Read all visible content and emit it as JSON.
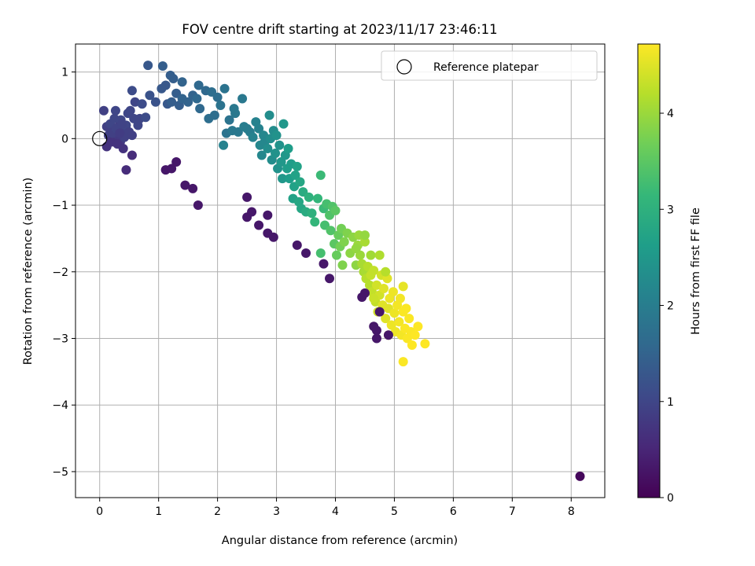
{
  "chart_data": {
    "type": "scatter",
    "title": "FOV centre drift starting at 2023/11/17 23:46:11",
    "xlabel": "Angular distance from reference (arcmin)",
    "ylabel": "Rotation from reference (arcmin)",
    "xlim": [
      -0.41,
      8.57
    ],
    "ylim": [
      -5.39,
      1.42
    ],
    "xticks": [
      0,
      1,
      2,
      3,
      4,
      5,
      6,
      7,
      8
    ],
    "yticks": [
      1,
      0,
      -1,
      -2,
      -3,
      -4,
      -5
    ],
    "grid": true,
    "legend": {
      "position": "top-right",
      "entries": [
        "Reference platepar"
      ]
    },
    "reference_point": {
      "x": 0,
      "y": 0
    },
    "colorbar": {
      "label": "Hours from first FF file",
      "colormap": "viridis",
      "range": [
        0,
        4.72
      ],
      "ticks": [
        0,
        1,
        2,
        3,
        4
      ]
    },
    "colormap_stops": [
      "#440154",
      "#482878",
      "#3e4989",
      "#31688e",
      "#26828e",
      "#1f9e89",
      "#35b779",
      "#6ece58",
      "#b5de2b",
      "#fde725"
    ],
    "points": [
      [
        0.07,
        0.42,
        0.9
      ],
      [
        0.12,
        0.18,
        0.9
      ],
      [
        0.15,
        0.05,
        0.9
      ],
      [
        0.18,
        0.22,
        1.0
      ],
      [
        0.2,
        -0.02,
        0.8
      ],
      [
        0.22,
        0.1,
        0.9
      ],
      [
        0.25,
        0.3,
        1.0
      ],
      [
        0.27,
        0.42,
        1.0
      ],
      [
        0.3,
        0.02,
        0.8
      ],
      [
        0.32,
        0.18,
        0.9
      ],
      [
        0.35,
        -0.05,
        0.8
      ],
      [
        0.36,
        0.28,
        1.0
      ],
      [
        0.4,
        0.12,
        0.9
      ],
      [
        0.42,
        0.02,
        0.9
      ],
      [
        0.45,
        0.2,
        1.0
      ],
      [
        0.48,
        0.38,
        1.0
      ],
      [
        0.5,
        0.1,
        0.9
      ],
      [
        0.52,
        0.42,
        1.0
      ],
      [
        0.55,
        0.05,
        0.9
      ],
      [
        0.58,
        0.3,
        1.0
      ],
      [
        0.6,
        0.55,
        1.0
      ],
      [
        0.65,
        0.2,
        1.0
      ],
      [
        0.68,
        0.3,
        1.0
      ],
      [
        0.72,
        0.52,
        1.1
      ],
      [
        0.78,
        0.32,
        1.1
      ],
      [
        0.12,
        -0.12,
        0.7
      ],
      [
        0.2,
        -0.05,
        0.7
      ],
      [
        0.3,
        -0.08,
        0.7
      ],
      [
        0.4,
        -0.15,
        0.7
      ],
      [
        0.45,
        -0.47,
        0.6
      ],
      [
        0.55,
        -0.25,
        0.6
      ],
      [
        0.22,
        0.08,
        0.9
      ],
      [
        0.28,
        0.15,
        0.95
      ],
      [
        0.34,
        0.08,
        0.85
      ],
      [
        0.38,
        0.22,
        0.95
      ],
      [
        0.55,
        0.72,
        1.1
      ],
      [
        0.82,
        1.1,
        1.3
      ],
      [
        1.07,
        1.09,
        1.4
      ],
      [
        0.85,
        0.65,
        1.2
      ],
      [
        0.95,
        0.55,
        1.2
      ],
      [
        1.05,
        0.75,
        1.3
      ],
      [
        1.12,
        0.8,
        1.3
      ],
      [
        1.2,
        0.95,
        1.4
      ],
      [
        1.25,
        0.9,
        1.4
      ],
      [
        1.15,
        0.52,
        1.3
      ],
      [
        1.22,
        0.55,
        1.4
      ],
      [
        1.3,
        0.68,
        1.4
      ],
      [
        1.35,
        0.5,
        1.4
      ],
      [
        1.4,
        0.6,
        1.5
      ],
      [
        1.4,
        0.85,
        1.5
      ],
      [
        1.5,
        0.55,
        1.5
      ],
      [
        1.58,
        0.65,
        1.5
      ],
      [
        1.65,
        0.6,
        1.6
      ],
      [
        1.68,
        0.8,
        1.6
      ],
      [
        1.7,
        0.45,
        1.6
      ],
      [
        1.8,
        0.72,
        1.6
      ],
      [
        1.85,
        0.3,
        1.7
      ],
      [
        1.9,
        0.7,
        1.7
      ],
      [
        1.95,
        0.35,
        1.7
      ],
      [
        2.0,
        0.62,
        1.7
      ],
      [
        2.05,
        0.5,
        1.8
      ],
      [
        2.12,
        0.75,
        1.8
      ],
      [
        2.15,
        0.08,
        1.8
      ],
      [
        2.2,
        0.28,
        1.8
      ],
      [
        2.25,
        0.12,
        1.9
      ],
      [
        2.28,
        0.45,
        1.9
      ],
      [
        2.3,
        0.38,
        1.9
      ],
      [
        2.35,
        0.1,
        1.9
      ],
      [
        2.42,
        0.6,
        1.9
      ],
      [
        2.45,
        0.18,
        2.0
      ],
      [
        2.5,
        0.15,
        2.0
      ],
      [
        2.55,
        0.1,
        2.0
      ],
      [
        2.6,
        0.02,
        2.1
      ],
      [
        2.65,
        0.25,
        2.1
      ],
      [
        2.7,
        0.15,
        2.1
      ],
      [
        2.72,
        -0.1,
        2.2
      ],
      [
        2.75,
        -0.25,
        2.2
      ],
      [
        2.78,
        0.05,
        2.2
      ],
      [
        2.8,
        -0.05,
        2.2
      ],
      [
        2.85,
        -0.15,
        2.3
      ],
      [
        2.88,
        0.35,
        2.3
      ],
      [
        2.9,
        0.0,
        2.3
      ],
      [
        2.92,
        -0.32,
        2.3
      ],
      [
        2.95,
        0.12,
        2.3
      ],
      [
        2.98,
        -0.22,
        2.4
      ],
      [
        3.0,
        0.05,
        2.4
      ],
      [
        3.02,
        -0.45,
        2.4
      ],
      [
        3.05,
        -0.1,
        2.4
      ],
      [
        3.08,
        -0.35,
        2.5
      ],
      [
        3.1,
        -0.6,
        2.5
      ],
      [
        3.12,
        0.22,
        2.5
      ],
      [
        3.15,
        -0.25,
        2.5
      ],
      [
        3.18,
        -0.45,
        2.6
      ],
      [
        3.2,
        -0.15,
        2.6
      ],
      [
        3.22,
        -0.6,
        2.6
      ],
      [
        3.25,
        -0.38,
        2.6
      ],
      [
        3.28,
        -0.9,
        2.7
      ],
      [
        3.3,
        -0.72,
        2.7
      ],
      [
        3.32,
        -0.55,
        2.7
      ],
      [
        3.35,
        -0.42,
        2.7
      ],
      [
        3.38,
        -0.95,
        2.8
      ],
      [
        3.4,
        -0.65,
        2.8
      ],
      [
        3.42,
        -1.05,
        2.8
      ],
      [
        3.45,
        -0.8,
        2.9
      ],
      [
        3.5,
        -1.1,
        2.9
      ],
      [
        3.55,
        -0.88,
        3.0
      ],
      [
        3.6,
        -1.12,
        3.0
      ],
      [
        3.65,
        -1.25,
        3.1
      ],
      [
        3.7,
        -0.9,
        3.1
      ],
      [
        3.75,
        -0.55,
        3.2
      ],
      [
        3.8,
        -1.05,
        3.2
      ],
      [
        3.82,
        -1.3,
        3.3
      ],
      [
        3.85,
        -0.98,
        3.3
      ],
      [
        3.9,
        -1.15,
        3.4
      ],
      [
        3.92,
        -1.38,
        3.4
      ],
      [
        3.95,
        -1.02,
        3.4
      ],
      [
        3.98,
        -1.58,
        3.5
      ],
      [
        4.0,
        -1.08,
        3.5
      ],
      [
        4.02,
        -1.75,
        3.6
      ],
      [
        4.05,
        -1.45,
        3.6
      ],
      [
        4.08,
        -1.62,
        3.7
      ],
      [
        4.1,
        -1.35,
        3.7
      ],
      [
        4.12,
        -1.9,
        3.8
      ],
      [
        4.15,
        -1.55,
        3.8
      ],
      [
        4.2,
        -1.42,
        3.8
      ],
      [
        4.25,
        -1.72,
        3.9
      ],
      [
        4.3,
        -1.48,
        3.9
      ],
      [
        4.35,
        -1.9,
        3.9
      ],
      [
        4.38,
        -1.6,
        4.0
      ],
      [
        4.4,
        -1.45,
        4.0
      ],
      [
        4.42,
        -1.75,
        4.0
      ],
      [
        4.45,
        -1.88,
        4.1
      ],
      [
        4.48,
        -2.0,
        4.1
      ],
      [
        4.5,
        -1.55,
        4.1
      ],
      [
        4.52,
        -2.1,
        4.2
      ],
      [
        4.55,
        -1.92,
        4.2
      ],
      [
        4.58,
        -2.2,
        4.2
      ],
      [
        4.6,
        -2.05,
        4.3
      ],
      [
        4.62,
        -2.3,
        4.3
      ],
      [
        4.65,
        -1.98,
        4.3
      ],
      [
        4.68,
        -2.45,
        4.3
      ],
      [
        4.7,
        -2.2,
        4.4
      ],
      [
        4.72,
        -2.6,
        4.4
      ],
      [
        4.75,
        -2.35,
        4.4
      ],
      [
        4.78,
        -2.05,
        4.4
      ],
      [
        4.8,
        -2.5,
        4.5
      ],
      [
        4.82,
        -2.25,
        4.5
      ],
      [
        4.85,
        -2.7,
        4.5
      ],
      [
        4.88,
        -2.1,
        4.5
      ],
      [
        4.9,
        -2.55,
        4.5
      ],
      [
        4.92,
        -2.4,
        4.6
      ],
      [
        4.95,
        -2.8,
        4.6
      ],
      [
        4.98,
        -2.3,
        4.6
      ],
      [
        5.0,
        -2.62,
        4.6
      ],
      [
        5.02,
        -2.9,
        4.6
      ],
      [
        5.05,
        -2.5,
        4.65
      ],
      [
        5.08,
        -2.75,
        4.65
      ],
      [
        5.1,
        -2.4,
        4.65
      ],
      [
        5.12,
        -2.95,
        4.65
      ],
      [
        5.15,
        -2.6,
        4.7
      ],
      [
        5.15,
        -3.35,
        4.7
      ],
      [
        5.18,
        -2.85,
        4.7
      ],
      [
        5.2,
        -2.55,
        4.7
      ],
      [
        5.22,
        -3.0,
        4.7
      ],
      [
        5.25,
        -2.7,
        4.7
      ],
      [
        5.28,
        -2.9,
        4.7
      ],
      [
        5.3,
        -3.1,
        4.72
      ],
      [
        5.35,
        -2.95,
        4.72
      ],
      [
        5.4,
        -2.82,
        4.72
      ],
      [
        5.52,
        -3.08,
        4.72
      ],
      [
        4.5,
        -1.45,
        3.95
      ],
      [
        4.35,
        -1.65,
        3.95
      ],
      [
        4.6,
        -1.75,
        4.05
      ],
      [
        4.75,
        -1.75,
        4.15
      ],
      [
        4.85,
        -2.0,
        4.2
      ],
      [
        5.15,
        -2.22,
        4.55
      ],
      [
        4.9,
        -2.95,
        4.5
      ],
      [
        4.65,
        -2.4,
        4.35
      ],
      [
        3.75,
        -1.72,
        3.3
      ],
      [
        2.1,
        -0.1,
        2.1
      ],
      [
        1.12,
        -0.47,
        0.3
      ],
      [
        1.22,
        -0.45,
        0.3
      ],
      [
        1.3,
        -0.35,
        0.3
      ],
      [
        1.45,
        -0.7,
        0.3
      ],
      [
        1.58,
        -0.75,
        0.3
      ],
      [
        1.67,
        -1.0,
        0.3
      ],
      [
        2.5,
        -0.88,
        0.3
      ],
      [
        2.5,
        -1.18,
        0.3
      ],
      [
        2.58,
        -1.1,
        0.3
      ],
      [
        2.7,
        -1.3,
        0.3
      ],
      [
        2.85,
        -1.42,
        0.3
      ],
      [
        2.95,
        -1.48,
        0.3
      ],
      [
        2.85,
        -1.15,
        0.3
      ],
      [
        3.35,
        -1.6,
        0.3
      ],
      [
        3.5,
        -1.72,
        0.3
      ],
      [
        3.8,
        -1.88,
        0.3
      ],
      [
        3.9,
        -2.1,
        0.3
      ],
      [
        4.45,
        -2.38,
        0.3
      ],
      [
        4.5,
        -2.32,
        0.3
      ],
      [
        4.65,
        -2.82,
        0.3
      ],
      [
        4.7,
        -3.0,
        0.3
      ],
      [
        4.7,
        -2.88,
        0.3
      ],
      [
        4.9,
        -2.95,
        0.3
      ],
      [
        4.75,
        -2.6,
        0.3
      ],
      [
        8.15,
        -5.07,
        0.1
      ]
    ]
  }
}
